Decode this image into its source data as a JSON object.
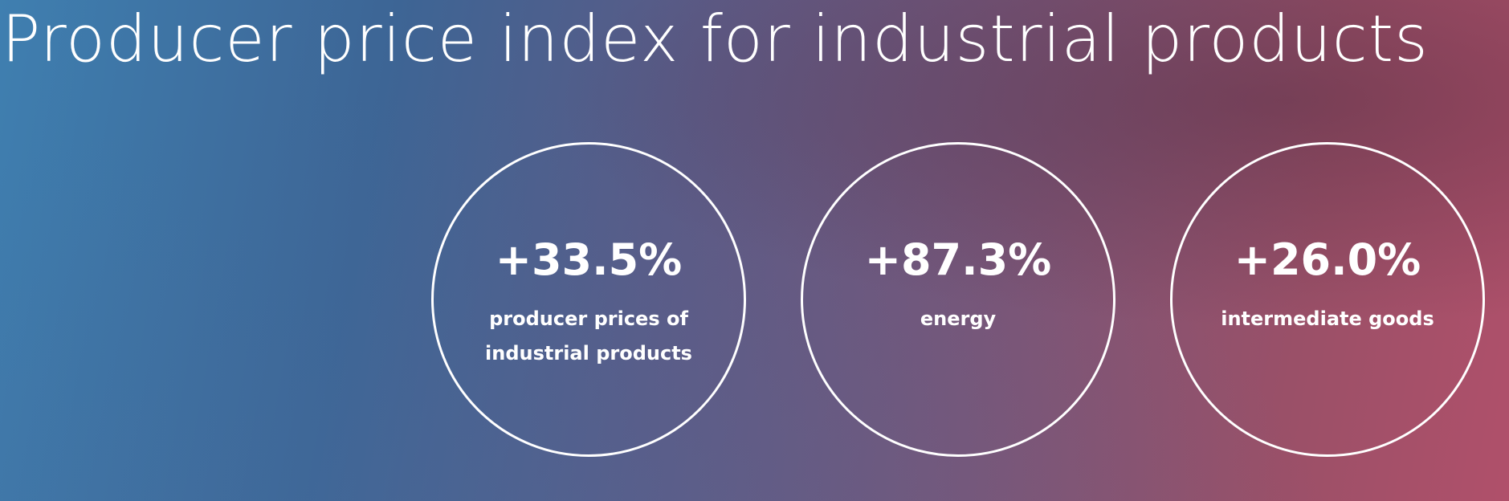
{
  "title": "Producer price index for industrial products",
  "stats": [
    {
      "value": "+33.5%",
      "label_lines": [
        "producer prices of",
        "industrial products"
      ]
    },
    {
      "value": "+87.3%",
      "label_lines": [
        "energy"
      ]
    },
    {
      "value": "+26.0%",
      "label_lines": [
        "intermediate goods"
      ]
    }
  ],
  "colors": {
    "gradient_left": "#3f7fb0",
    "gradient_right": "#b0506a",
    "text": "#ffffff"
  }
}
